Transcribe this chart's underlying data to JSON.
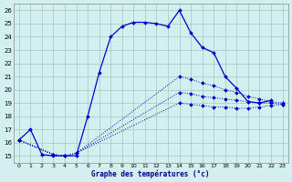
{
  "xlabel": "Graphe des températures (°c)",
  "xlim": [
    -0.5,
    23.5
  ],
  "ylim": [
    14.5,
    26.5
  ],
  "yticks": [
    15,
    16,
    17,
    18,
    19,
    20,
    21,
    22,
    23,
    24,
    25,
    26
  ],
  "xticks": [
    0,
    1,
    2,
    3,
    4,
    5,
    6,
    7,
    8,
    9,
    10,
    11,
    12,
    13,
    14,
    15,
    16,
    17,
    18,
    19,
    20,
    21,
    22,
    23
  ],
  "bg_color": "#d4efef",
  "grid_color": "#a0c8c8",
  "line_color": "#0000cc",
  "markersize": 2.0,
  "line_solid": {
    "x": [
      0,
      1,
      2,
      3,
      4,
      5,
      6,
      7,
      8,
      9,
      10,
      11,
      12,
      13,
      14,
      15,
      16,
      17,
      18,
      19,
      20,
      21,
      22
    ],
    "y": [
      16.2,
      17.0,
      15.1,
      15.0,
      15.0,
      15.0,
      18.0,
      21.3,
      24.0,
      24.8,
      25.1,
      25.1,
      25.0,
      24.8,
      26.0,
      24.3,
      23.2,
      22.8,
      21.0,
      20.1,
      19.1,
      19.0,
      19.2
    ]
  },
  "line_dot1": {
    "x": [
      0,
      3,
      4,
      5,
      14,
      15,
      16,
      17,
      18,
      19,
      20,
      21,
      22,
      23
    ],
    "y": [
      16.2,
      15.1,
      15.0,
      15.2,
      21.0,
      20.8,
      20.5,
      20.3,
      20.0,
      19.8,
      19.5,
      19.3,
      19.1,
      19.0
    ]
  },
  "line_dot2": {
    "x": [
      0,
      3,
      4,
      5,
      14,
      15,
      16,
      17,
      18,
      19,
      20,
      21,
      22,
      23
    ],
    "y": [
      16.2,
      15.1,
      15.0,
      15.2,
      19.8,
      19.7,
      19.5,
      19.4,
      19.3,
      19.2,
      19.1,
      19.0,
      19.0,
      18.9
    ]
  },
  "line_dot3": {
    "x": [
      0,
      3,
      4,
      5,
      14,
      15,
      16,
      17,
      18,
      19,
      20,
      21,
      22,
      23
    ],
    "y": [
      16.2,
      15.1,
      15.0,
      15.2,
      19.0,
      18.9,
      18.8,
      18.7,
      18.7,
      18.6,
      18.6,
      18.7,
      18.8,
      18.9
    ]
  }
}
